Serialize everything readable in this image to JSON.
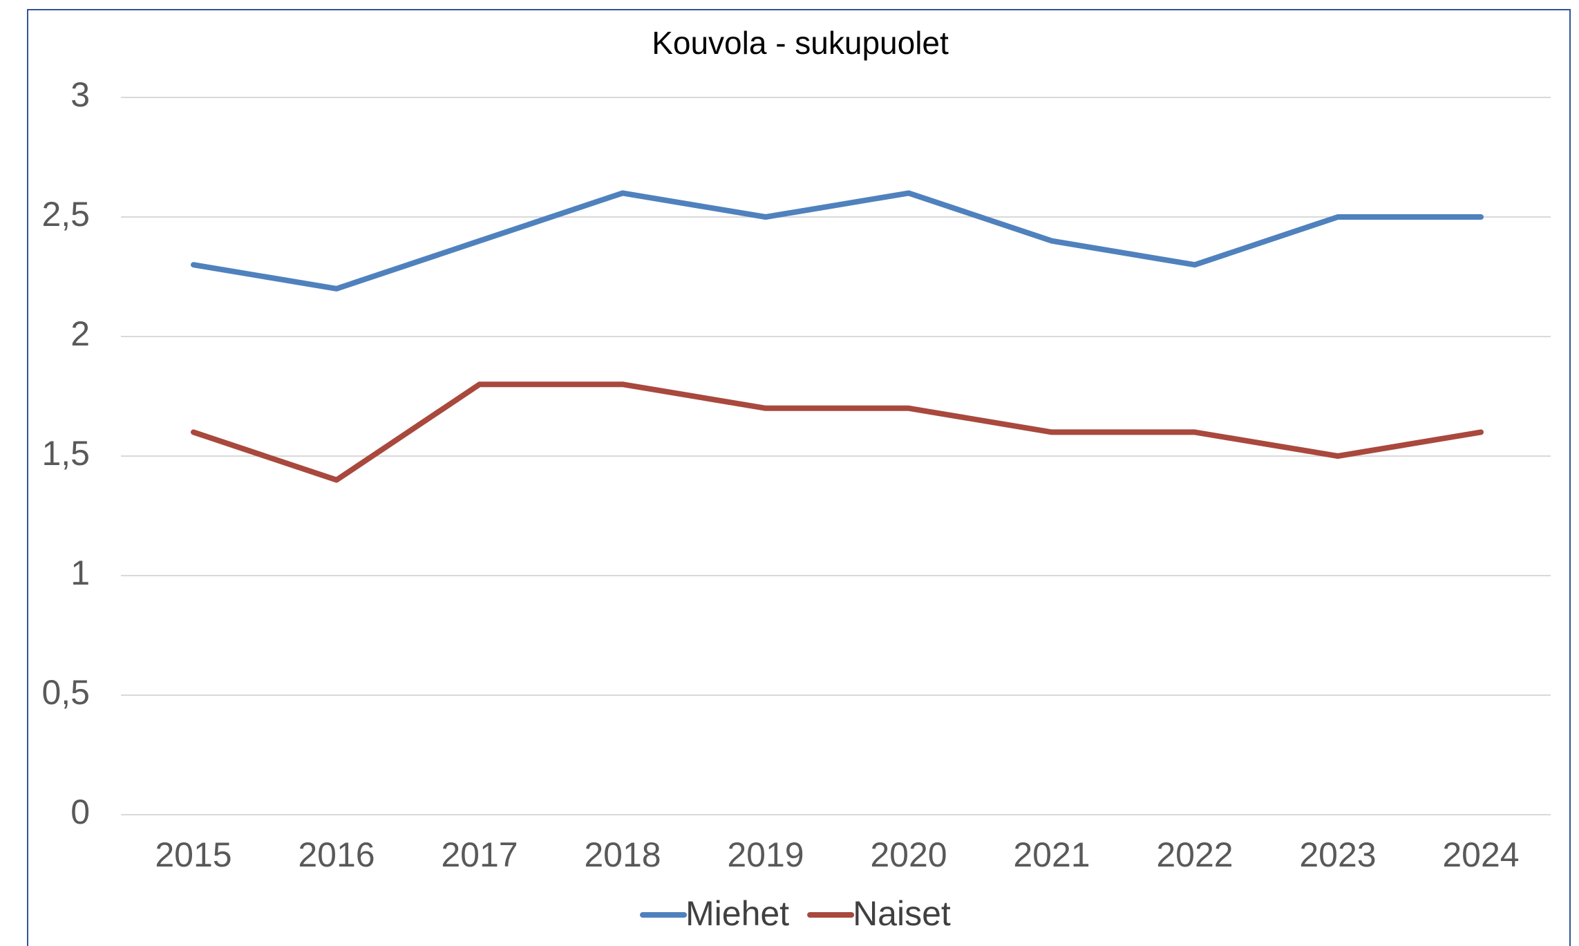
{
  "chart_data": {
    "type": "line",
    "title": "Kouvola - sukupuolet",
    "categories": [
      "2015",
      "2016",
      "2017",
      "2018",
      "2019",
      "2020",
      "2021",
      "2022",
      "2023",
      "2024"
    ],
    "series": [
      {
        "name": "Miehet",
        "color": "#4f81bd",
        "values": [
          2.3,
          2.2,
          2.4,
          2.6,
          2.5,
          2.6,
          2.4,
          2.3,
          2.5,
          2.5
        ]
      },
      {
        "name": "Naiset",
        "color": "#a9483d",
        "values": [
          1.6,
          1.4,
          1.8,
          1.8,
          1.7,
          1.7,
          1.6,
          1.6,
          1.5,
          1.6
        ]
      }
    ],
    "ylim": [
      0,
      3
    ],
    "yticks": [
      0,
      {
        "value": 0.5,
        "label": "0,5"
      },
      1,
      {
        "value": 1.5,
        "label": "1,5"
      },
      2,
      {
        "value": 2.5,
        "label": "2,5"
      },
      3
    ],
    "grid": true,
    "legend": "bottom"
  }
}
